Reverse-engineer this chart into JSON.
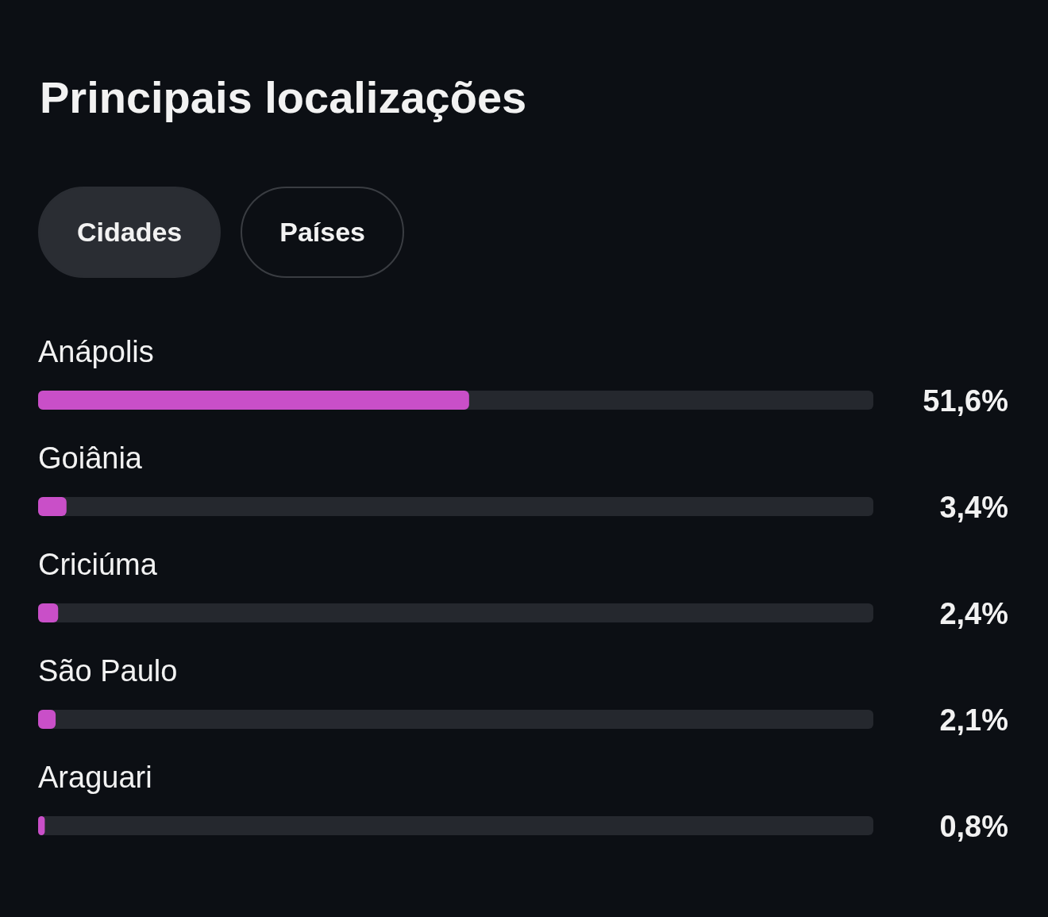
{
  "chart_data": {
    "type": "bar",
    "orientation": "horizontal",
    "title": "Principais localizações",
    "annotations": [
      "Cidades",
      "Países"
    ],
    "categories": [
      "Anápolis",
      "Goiânia",
      "Criciúma",
      "São Paulo",
      "Araguari"
    ],
    "values": [
      51.6,
      3.4,
      2.4,
      2.1,
      0.8
    ],
    "value_labels": [
      "51,6%",
      "3,4%",
      "2,4%",
      "2,1%",
      "0,8%"
    ],
    "color": "#c94fc8",
    "xlim": [
      0,
      100
    ],
    "tick_labels": false,
    "grid": false,
    "legend": false
  }
}
